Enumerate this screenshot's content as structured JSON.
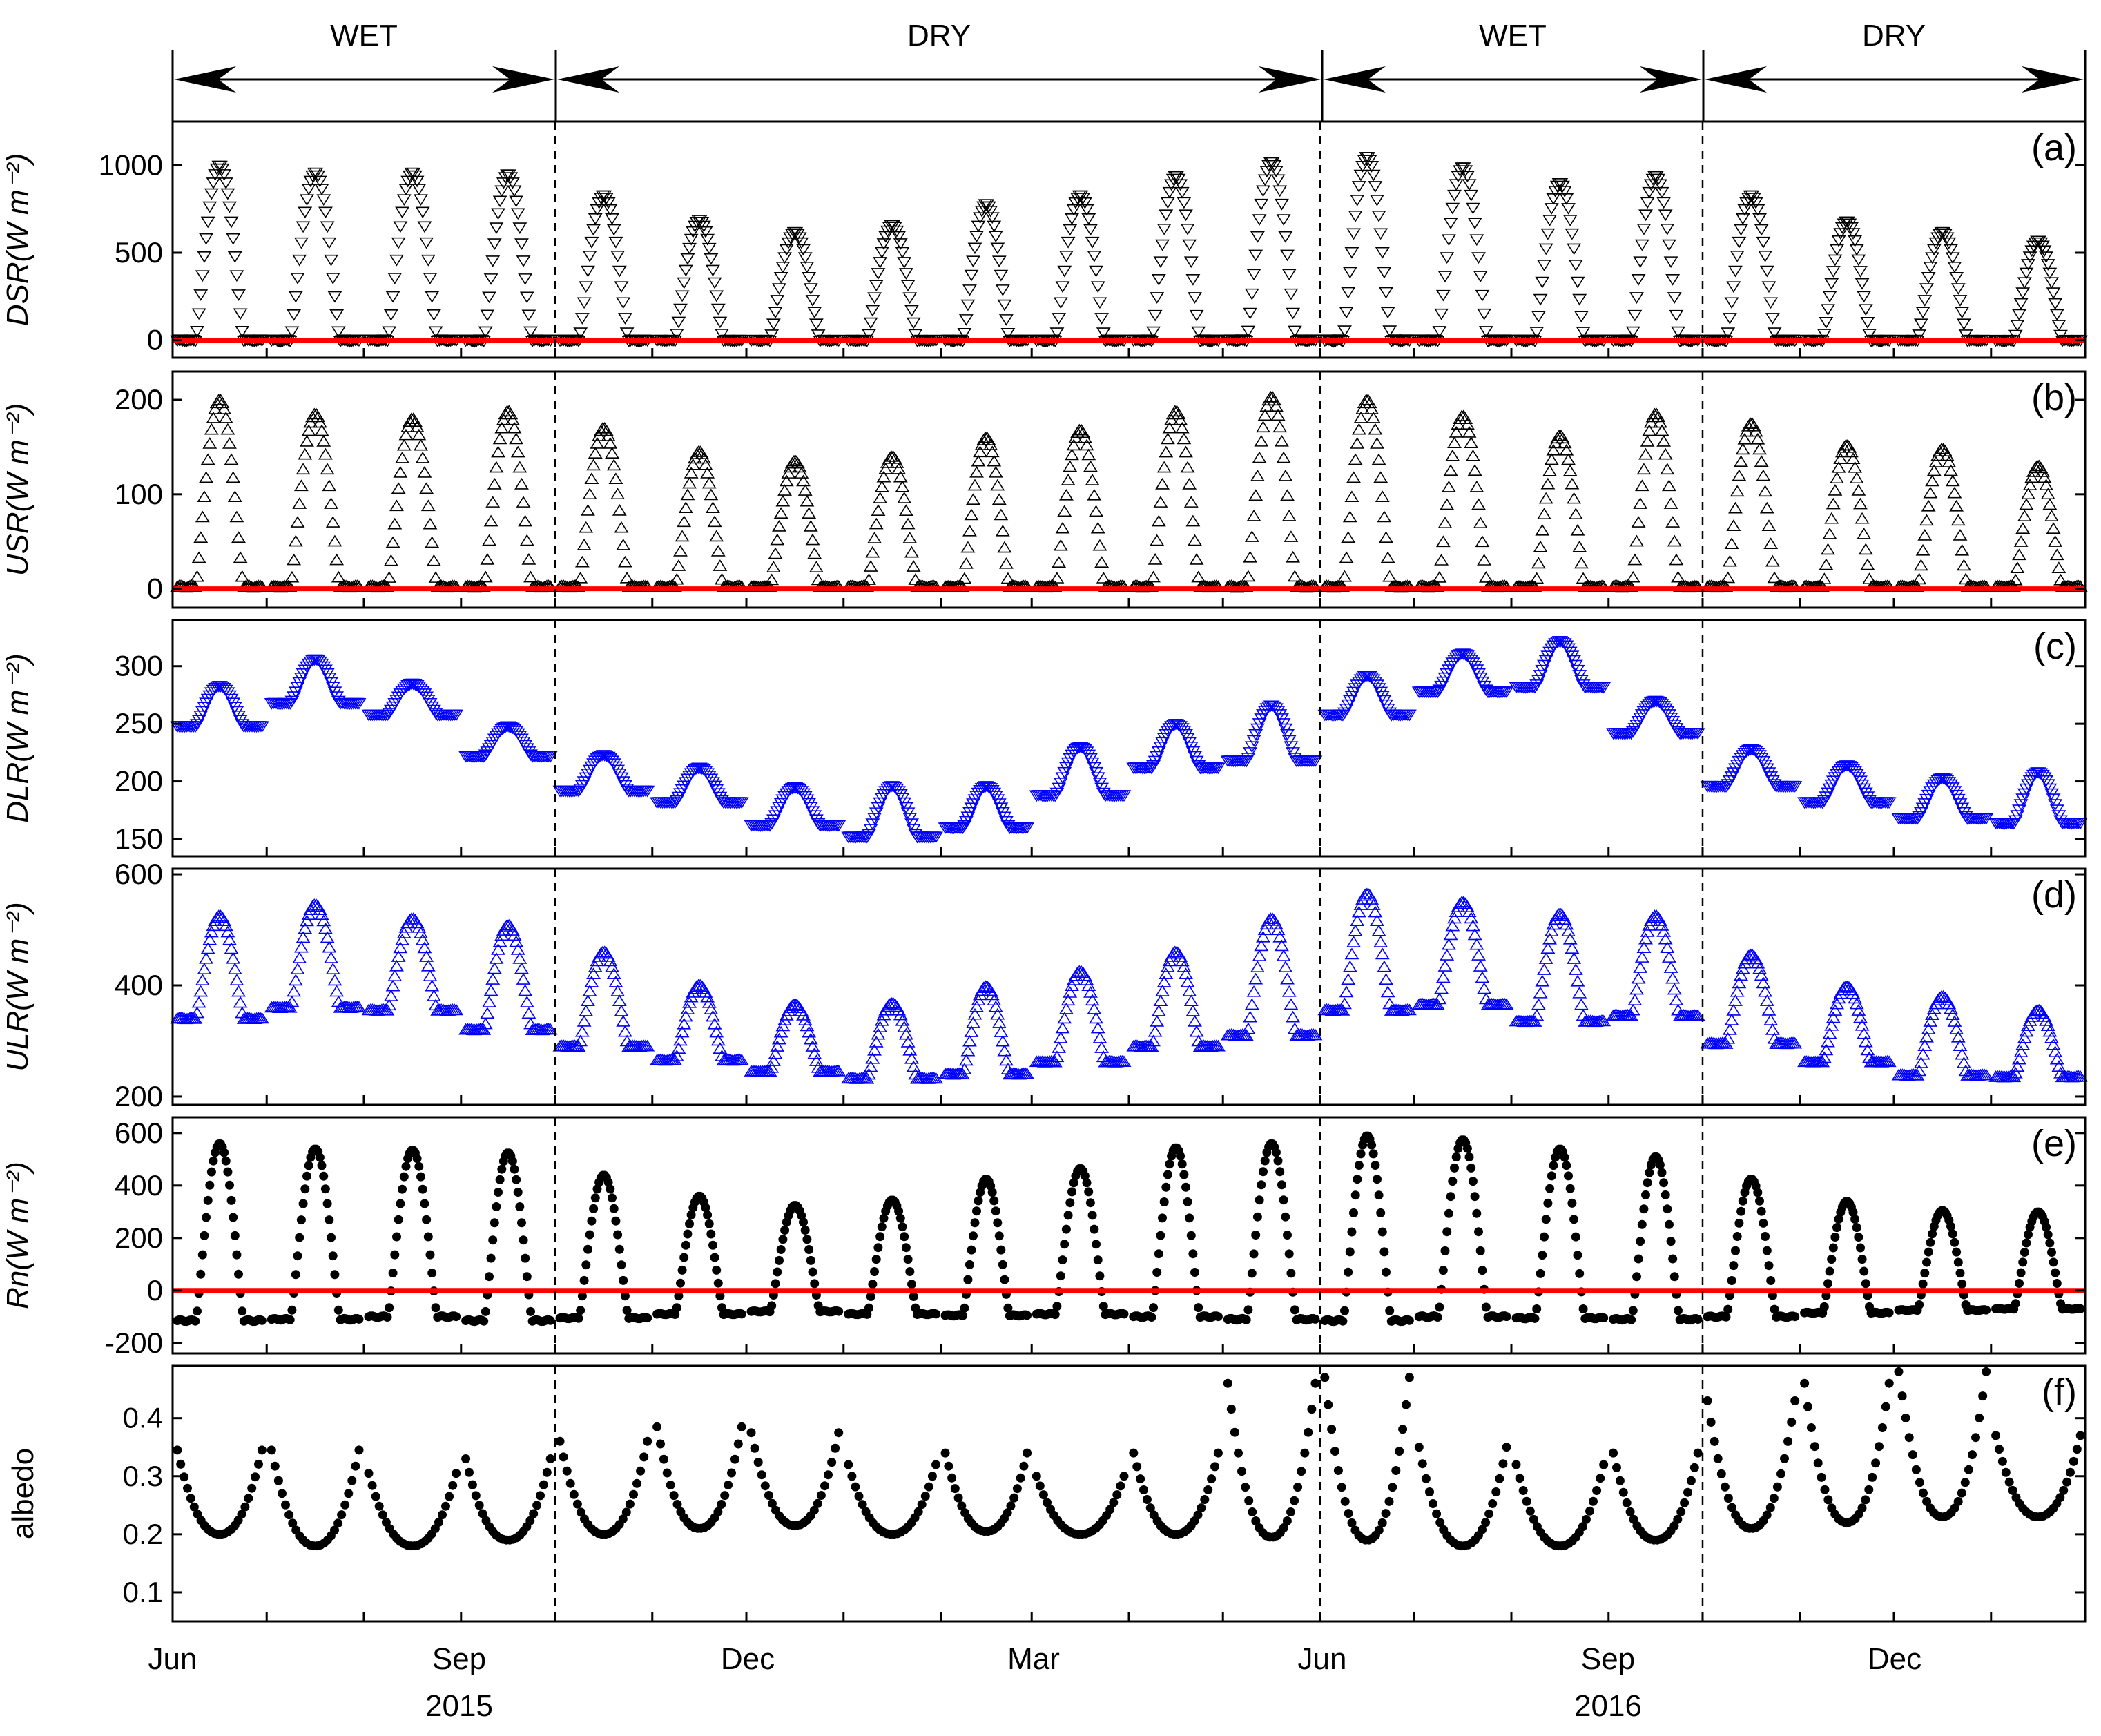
{
  "x_axis": {
    "tick_labels": [
      "Jun",
      "Sep",
      "Dec",
      "Mar",
      "Jun",
      "Sep",
      "Dec"
    ],
    "year_labels": [
      "2015",
      "2016"
    ]
  },
  "seasons": [
    {
      "label": "WET",
      "start": "2015-06-01",
      "end": "2015-10-01"
    },
    {
      "label": "DRY",
      "start": "2015-10-01",
      "end": "2016-06-01"
    },
    {
      "label": "WET",
      "start": "2016-06-01",
      "end": "2016-10-01"
    },
    {
      "label": "DRY",
      "start": "2016-10-01",
      "end": "2017-01-31"
    }
  ],
  "colors": {
    "black": "#000000",
    "blue": "#0000ff",
    "red_reference": "#ff0000"
  },
  "chart_data": [
    {
      "type": "scatter",
      "tag": "(a)",
      "ylabel": "DSR(W m⁻²)",
      "ylim": [
        -100,
        1250
      ],
      "yticks": [
        0,
        500,
        1000
      ],
      "marker": "triangle-down",
      "color": "#000000",
      "reference_line": 0,
      "x_range": [
        "2015-06-01",
        "2017-01-31"
      ],
      "diurnal_cycles": [
        {
          "month": "2015-06",
          "min": 0,
          "max": 1000
        },
        {
          "month": "2015-07",
          "min": 0,
          "max": 960
        },
        {
          "month": "2015-08",
          "min": 0,
          "max": 960
        },
        {
          "month": "2015-09",
          "min": 0,
          "max": 950
        },
        {
          "month": "2015-10",
          "min": 0,
          "max": 830
        },
        {
          "month": "2015-11",
          "min": 0,
          "max": 690
        },
        {
          "month": "2015-12",
          "min": 0,
          "max": 620
        },
        {
          "month": "2016-01",
          "min": 0,
          "max": 660
        },
        {
          "month": "2016-02",
          "min": 0,
          "max": 780
        },
        {
          "month": "2016-03",
          "min": 0,
          "max": 830
        },
        {
          "month": "2016-04",
          "min": 0,
          "max": 940
        },
        {
          "month": "2016-05",
          "min": 0,
          "max": 1020
        },
        {
          "month": "2016-06",
          "min": 0,
          "max": 1050
        },
        {
          "month": "2016-07",
          "min": 0,
          "max": 990
        },
        {
          "month": "2016-08",
          "min": 0,
          "max": 900
        },
        {
          "month": "2016-09",
          "min": 0,
          "max": 940
        },
        {
          "month": "2016-10",
          "min": 0,
          "max": 830
        },
        {
          "month": "2016-11",
          "min": 0,
          "max": 680
        },
        {
          "month": "2016-12",
          "min": 0,
          "max": 620
        },
        {
          "month": "2017-01",
          "min": 0,
          "max": 570
        }
      ]
    },
    {
      "type": "scatter",
      "tag": "(b)",
      "ylabel": "USR(W m⁻²)",
      "ylim": [
        -20,
        230
      ],
      "yticks": [
        0,
        100,
        200
      ],
      "marker": "triangle-up",
      "color": "#000000",
      "reference_line": 0,
      "x_range": [
        "2015-06-01",
        "2017-01-31"
      ],
      "diurnal_cycles": [
        {
          "month": "2015-06",
          "min": 2,
          "max": 200
        },
        {
          "month": "2015-07",
          "min": 2,
          "max": 185
        },
        {
          "month": "2015-08",
          "min": 2,
          "max": 180
        },
        {
          "month": "2015-09",
          "min": 2,
          "max": 188
        },
        {
          "month": "2015-10",
          "min": 2,
          "max": 170
        },
        {
          "month": "2015-11",
          "min": 2,
          "max": 145
        },
        {
          "month": "2015-12",
          "min": 2,
          "max": 135
        },
        {
          "month": "2016-01",
          "min": 2,
          "max": 140
        },
        {
          "month": "2016-02",
          "min": 2,
          "max": 160
        },
        {
          "month": "2016-03",
          "min": 2,
          "max": 168
        },
        {
          "month": "2016-04",
          "min": 2,
          "max": 188
        },
        {
          "month": "2016-05",
          "min": 2,
          "max": 203
        },
        {
          "month": "2016-06",
          "min": 2,
          "max": 200
        },
        {
          "month": "2016-07",
          "min": 2,
          "max": 183
        },
        {
          "month": "2016-08",
          "min": 2,
          "max": 162
        },
        {
          "month": "2016-09",
          "min": 2,
          "max": 185
        },
        {
          "month": "2016-10",
          "min": 2,
          "max": 175
        },
        {
          "month": "2016-11",
          "min": 2,
          "max": 152
        },
        {
          "month": "2016-12",
          "min": 2,
          "max": 148
        },
        {
          "month": "2017-01",
          "min": 2,
          "max": 130
        }
      ]
    },
    {
      "type": "scatter",
      "tag": "(c)",
      "ylabel": "DLR(W m⁻²)",
      "ylim": [
        135,
        340
      ],
      "yticks": [
        150,
        200,
        250,
        300
      ],
      "marker": "triangle-down",
      "color": "#0000ff",
      "x_range": [
        "2015-06-01",
        "2017-01-31"
      ],
      "diurnal_cycles": [
        {
          "month": "2015-06",
          "min": 248,
          "max": 283
        },
        {
          "month": "2015-07",
          "min": 268,
          "max": 306
        },
        {
          "month": "2015-08",
          "min": 258,
          "max": 285
        },
        {
          "month": "2015-09",
          "min": 222,
          "max": 248
        },
        {
          "month": "2015-10",
          "min": 192,
          "max": 223
        },
        {
          "month": "2015-11",
          "min": 182,
          "max": 212
        },
        {
          "month": "2015-12",
          "min": 162,
          "max": 195
        },
        {
          "month": "2016-01",
          "min": 152,
          "max": 196
        },
        {
          "month": "2016-02",
          "min": 160,
          "max": 196
        },
        {
          "month": "2016-03",
          "min": 188,
          "max": 230
        },
        {
          "month": "2016-04",
          "min": 212,
          "max": 250
        },
        {
          "month": "2016-05",
          "min": 218,
          "max": 266
        },
        {
          "month": "2016-06",
          "min": 258,
          "max": 292
        },
        {
          "month": "2016-07",
          "min": 278,
          "max": 311
        },
        {
          "month": "2016-08",
          "min": 282,
          "max": 322
        },
        {
          "month": "2016-09",
          "min": 242,
          "max": 270
        },
        {
          "month": "2016-10",
          "min": 196,
          "max": 228
        },
        {
          "month": "2016-11",
          "min": 182,
          "max": 214
        },
        {
          "month": "2016-12",
          "min": 168,
          "max": 203
        },
        {
          "month": "2017-01",
          "min": 164,
          "max": 208
        }
      ]
    },
    {
      "type": "scatter",
      "tag": "(d)",
      "ylabel": "ULR(W m⁻²)",
      "ylim": [
        185,
        610
      ],
      "yticks": [
        200,
        400,
        600
      ],
      "marker": "triangle-up",
      "color": "#0000ff",
      "x_range": [
        "2015-06-01",
        "2017-01-31"
      ],
      "diurnal_cycles": [
        {
          "month": "2015-06",
          "min": 340,
          "max": 525
        },
        {
          "month": "2015-07",
          "min": 360,
          "max": 545
        },
        {
          "month": "2015-08",
          "min": 355,
          "max": 520
        },
        {
          "month": "2015-09",
          "min": 320,
          "max": 508
        },
        {
          "month": "2015-10",
          "min": 290,
          "max": 460
        },
        {
          "month": "2015-11",
          "min": 265,
          "max": 400
        },
        {
          "month": "2015-12",
          "min": 245,
          "max": 365
        },
        {
          "month": "2016-01",
          "min": 232,
          "max": 368
        },
        {
          "month": "2016-02",
          "min": 240,
          "max": 398
        },
        {
          "month": "2016-03",
          "min": 262,
          "max": 425
        },
        {
          "month": "2016-04",
          "min": 290,
          "max": 460
        },
        {
          "month": "2016-05",
          "min": 310,
          "max": 520
        },
        {
          "month": "2016-06",
          "min": 355,
          "max": 565
        },
        {
          "month": "2016-07",
          "min": 365,
          "max": 550
        },
        {
          "month": "2016-08",
          "min": 335,
          "max": 528
        },
        {
          "month": "2016-09",
          "min": 345,
          "max": 525
        },
        {
          "month": "2016-10",
          "min": 295,
          "max": 455
        },
        {
          "month": "2016-11",
          "min": 262,
          "max": 398
        },
        {
          "month": "2016-12",
          "min": 238,
          "max": 380
        },
        {
          "month": "2017-01",
          "min": 235,
          "max": 355
        }
      ]
    },
    {
      "type": "scatter",
      "tag": "(e)",
      "ylabel": "Rn(W m⁻²)",
      "ylim": [
        -240,
        660
      ],
      "yticks": [
        -200,
        0,
        200,
        400,
        600
      ],
      "marker": "dot",
      "color": "#000000",
      "reference_line": 0,
      "x_range": [
        "2015-06-01",
        "2017-01-31"
      ],
      "diurnal_cycles": [
        {
          "month": "2015-06",
          "min": -115,
          "max": 560
        },
        {
          "month": "2015-07",
          "min": -110,
          "max": 540
        },
        {
          "month": "2015-08",
          "min": -100,
          "max": 535
        },
        {
          "month": "2015-09",
          "min": -115,
          "max": 525
        },
        {
          "month": "2015-10",
          "min": -105,
          "max": 440
        },
        {
          "month": "2015-11",
          "min": -90,
          "max": 360
        },
        {
          "month": "2015-12",
          "min": -80,
          "max": 325
        },
        {
          "month": "2016-01",
          "min": -90,
          "max": 345
        },
        {
          "month": "2016-02",
          "min": -95,
          "max": 425
        },
        {
          "month": "2016-03",
          "min": -90,
          "max": 465
        },
        {
          "month": "2016-04",
          "min": -100,
          "max": 545
        },
        {
          "month": "2016-05",
          "min": -110,
          "max": 560
        },
        {
          "month": "2016-06",
          "min": -115,
          "max": 590
        },
        {
          "month": "2016-07",
          "min": -100,
          "max": 575
        },
        {
          "month": "2016-08",
          "min": -105,
          "max": 540
        },
        {
          "month": "2016-09",
          "min": -110,
          "max": 510
        },
        {
          "month": "2016-10",
          "min": -100,
          "max": 425
        },
        {
          "month": "2016-11",
          "min": -85,
          "max": 340
        },
        {
          "month": "2016-12",
          "min": -75,
          "max": 305
        },
        {
          "month": "2017-01",
          "min": -70,
          "max": 300
        }
      ]
    },
    {
      "type": "scatter",
      "tag": "(f)",
      "ylabel": "albedo",
      "ylim": [
        0.05,
        0.49
      ],
      "yticks": [
        0.1,
        0.2,
        0.3,
        0.4
      ],
      "marker": "dot",
      "color": "#000000",
      "x_range": [
        "2015-06-01",
        "2017-01-31"
      ],
      "diurnal_cycles": [
        {
          "month": "2015-06",
          "min": 0.2,
          "max": 0.345
        },
        {
          "month": "2015-07",
          "min": 0.18,
          "max": 0.345
        },
        {
          "month": "2015-08",
          "min": 0.18,
          "max": 0.305
        },
        {
          "month": "2015-09",
          "min": 0.19,
          "max": 0.33
        },
        {
          "month": "2015-10",
          "min": 0.2,
          "max": 0.36
        },
        {
          "month": "2015-11",
          "min": 0.21,
          "max": 0.385
        },
        {
          "month": "2015-12",
          "min": 0.215,
          "max": 0.375
        },
        {
          "month": "2016-01",
          "min": 0.2,
          "max": 0.32
        },
        {
          "month": "2016-02",
          "min": 0.205,
          "max": 0.34
        },
        {
          "month": "2016-03",
          "min": 0.2,
          "max": 0.3
        },
        {
          "month": "2016-04",
          "min": 0.2,
          "max": 0.34
        },
        {
          "month": "2016-05",
          "min": 0.195,
          "max": 0.46
        },
        {
          "month": "2016-06",
          "min": 0.19,
          "max": 0.47
        },
        {
          "month": "2016-07",
          "min": 0.18,
          "max": 0.35
        },
        {
          "month": "2016-08",
          "min": 0.18,
          "max": 0.32
        },
        {
          "month": "2016-09",
          "min": 0.19,
          "max": 0.34
        },
        {
          "month": "2016-10",
          "min": 0.21,
          "max": 0.43
        },
        {
          "month": "2016-11",
          "min": 0.22,
          "max": 0.46
        },
        {
          "month": "2016-12",
          "min": 0.23,
          "max": 0.48
        },
        {
          "month": "2017-01",
          "min": 0.23,
          "max": 0.37
        }
      ]
    }
  ]
}
